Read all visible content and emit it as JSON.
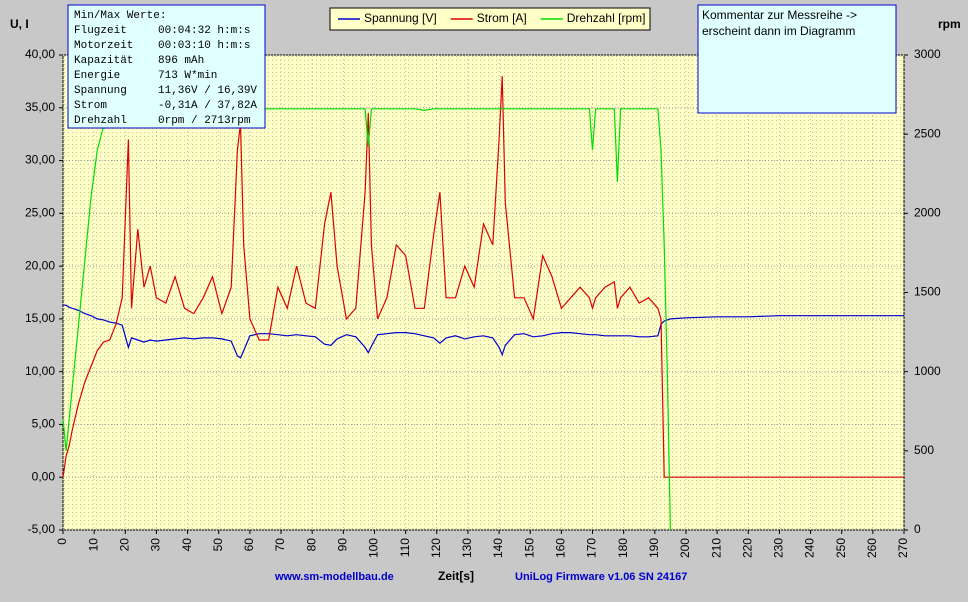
{
  "chart_data": {
    "type": "line",
    "xlabel": "Zeit[s]",
    "ylabel": "U, I",
    "y2label": "rpm",
    "footer_left": "www.sm-modellbau.de",
    "footer_right": "UniLog Firmware v1.06 SN 24167",
    "comment": [
      "Kommentar zur Messreihe ->",
      "erscheint dann im Diagramm"
    ],
    "info_box": {
      "title": "Min/Max Werte:",
      "rows": [
        [
          "Flugzeit",
          "00:04:32 h:m:s"
        ],
        [
          "Motorzeit",
          "00:03:10 h:m:s"
        ],
        [
          "Kapazität",
          "896 mAh"
        ],
        [
          "Energie",
          "713 W*min"
        ],
        [
          "Spannung",
          "11,36V / 16,39V"
        ],
        [
          "Strom",
          "-0,31A / 37,82A"
        ],
        [
          "Drehzahl",
          "0rpm / 2713rpm"
        ]
      ]
    },
    "legend": "top",
    "grid": true,
    "xlim": [
      0,
      270
    ],
    "xticks": [
      0,
      10,
      20,
      30,
      40,
      50,
      60,
      70,
      80,
      90,
      100,
      110,
      120,
      130,
      140,
      150,
      160,
      170,
      180,
      190,
      200,
      210,
      220,
      230,
      240,
      250,
      260,
      270
    ],
    "ylim": [
      -5,
      40
    ],
    "yticks": [
      {
        "value": -5,
        "label": "-5,00"
      },
      {
        "value": 0,
        "label": "0,00"
      },
      {
        "value": 5,
        "label": "5,00"
      },
      {
        "value": 10,
        "label": "10,00"
      },
      {
        "value": 15,
        "label": "15,00"
      },
      {
        "value": 20,
        "label": "20,00"
      },
      {
        "value": 25,
        "label": "25,00"
      },
      {
        "value": 30,
        "label": "30,00"
      },
      {
        "value": 35,
        "label": "35,00"
      },
      {
        "value": 40,
        "label": "40,00"
      }
    ],
    "y2lim": [
      0,
      3000
    ],
    "y2ticks": [
      0,
      500,
      1000,
      1500,
      2000,
      2500,
      3000
    ],
    "x": [
      0,
      1,
      2,
      3,
      5,
      7,
      9,
      11,
      13,
      15,
      17,
      19,
      21,
      22,
      24,
      26,
      28,
      30,
      33,
      36,
      39,
      42,
      45,
      48,
      51,
      54,
      56,
      57,
      58,
      60,
      63,
      66,
      69,
      72,
      75,
      78,
      81,
      84,
      86,
      88,
      91,
      94,
      97,
      98,
      99,
      101,
      104,
      107,
      110,
      113,
      116,
      119,
      121,
      123,
      126,
      129,
      132,
      135,
      138,
      140,
      141,
      142,
      145,
      148,
      151,
      154,
      157,
      160,
      163,
      166,
      169,
      170,
      171,
      174,
      177,
      178,
      179,
      182,
      185,
      188,
      191,
      192,
      193,
      194,
      195,
      200,
      210,
      220,
      230,
      240,
      250,
      260,
      270
    ],
    "series": [
      {
        "name": "Spannung [V]",
        "color": "#0000cc",
        "values": [
          16.3,
          16.3,
          16.1,
          16,
          15.8,
          15.5,
          15.3,
          15,
          14.9,
          14.7,
          14.6,
          14.4,
          12.3,
          13.2,
          13,
          12.8,
          13,
          12.9,
          13,
          13.1,
          13.2,
          13.1,
          13.2,
          13.2,
          13.1,
          12.9,
          11.5,
          11.3,
          12,
          13.4,
          13.6,
          13.6,
          13.5,
          13.4,
          13.5,
          13.4,
          13.3,
          12.6,
          12.5,
          13.1,
          13.5,
          13.3,
          12.3,
          11.8,
          12.4,
          13.5,
          13.6,
          13.7,
          13.7,
          13.6,
          13.4,
          13.2,
          12.7,
          13.2,
          13.4,
          13.1,
          13.3,
          13.4,
          13.2,
          12.3,
          11.6,
          12.5,
          13.5,
          13.6,
          13.3,
          13.4,
          13.6,
          13.7,
          13.7,
          13.6,
          13.5,
          13.5,
          13.5,
          13.4,
          13.4,
          13.4,
          13.4,
          13.4,
          13.3,
          13.3,
          13.4,
          14.5,
          14.8,
          14.9,
          15,
          15.1,
          15.2,
          15.2,
          15.3,
          15.3,
          15.3,
          15.3,
          15.3
        ]
      },
      {
        "name": "Strom [A]",
        "color": "#dd0000",
        "values": [
          0,
          2,
          3,
          4.5,
          7,
          9,
          10.5,
          12,
          12.8,
          13,
          14.5,
          17,
          32,
          16,
          23.5,
          18,
          20,
          17,
          16.5,
          19,
          16,
          15.5,
          17,
          19,
          15.5,
          18,
          31,
          33.5,
          22,
          15,
          13,
          13,
          18,
          16,
          20,
          16.5,
          16,
          24,
          27,
          20,
          15,
          16,
          27,
          34.5,
          22,
          15,
          17,
          22,
          21,
          16,
          16,
          23,
          27,
          17,
          17,
          20,
          18,
          24,
          22,
          32,
          38,
          26,
          17,
          17,
          15,
          21,
          19,
          16,
          17,
          18,
          17,
          16,
          17,
          18,
          18.5,
          16,
          17,
          18,
          16.5,
          17,
          16,
          15,
          0,
          0,
          0,
          0,
          0,
          0,
          0,
          0,
          0,
          0,
          0
        ]
      },
      {
        "name": "Drehzahl [rpm]",
        "color": "#00dd00",
        "axis": "y2",
        "values": [
          700,
          500,
          700,
          900,
          1300,
          1700,
          2100,
          2400,
          2550,
          2600,
          2650,
          2650,
          2650,
          2660,
          2660,
          2660,
          2660,
          2660,
          2660,
          2660,
          2660,
          2660,
          2660,
          2660,
          2660,
          2660,
          2660,
          2650,
          2660,
          2660,
          2660,
          2660,
          2660,
          2660,
          2660,
          2660,
          2660,
          2660,
          2660,
          2660,
          2660,
          2660,
          2660,
          2420,
          2660,
          2660,
          2660,
          2660,
          2660,
          2660,
          2650,
          2660,
          2660,
          2660,
          2660,
          2660,
          2660,
          2660,
          2660,
          2660,
          2660,
          2660,
          2660,
          2660,
          2660,
          2660,
          2660,
          2660,
          2660,
          2660,
          2660,
          2400,
          2660,
          2660,
          2660,
          2200,
          2660,
          2660,
          2660,
          2660,
          2660,
          2400,
          1800,
          1000,
          0,
          null,
          null,
          null,
          null,
          null,
          null,
          null,
          null
        ]
      }
    ]
  }
}
